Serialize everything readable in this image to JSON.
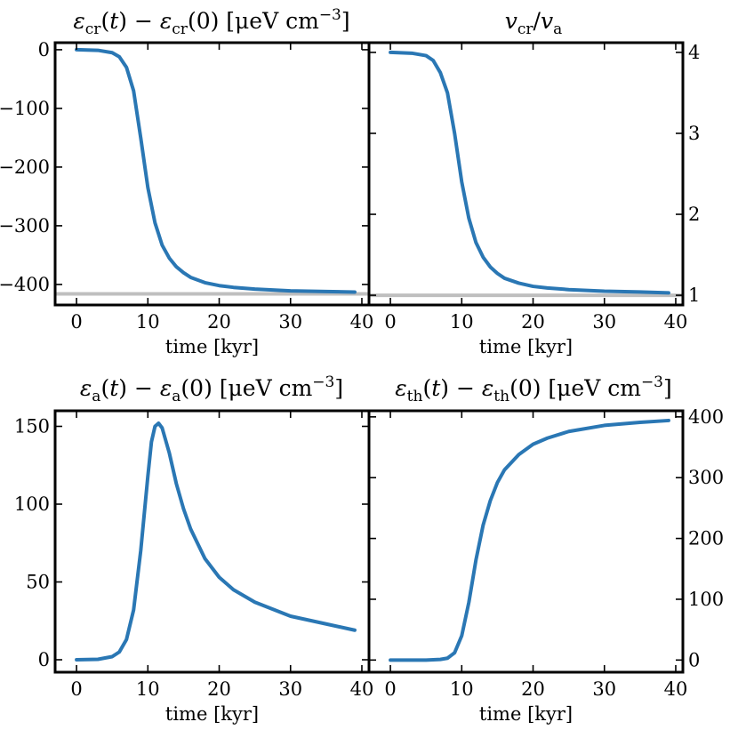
{
  "chart_data": [
    {
      "id": "ecr",
      "type": "line",
      "title_parts": [
        {
          "t": "ε",
          "i": true
        },
        {
          "t": "cr",
          "sub": true
        },
        {
          "t": "("
        },
        {
          "t": "t",
          "i": true
        },
        {
          "t": ") − "
        },
        {
          "t": "ε",
          "i": true
        },
        {
          "t": "cr",
          "sub": true
        },
        {
          "t": "(0) [μeV cm"
        },
        {
          "t": "−3",
          "sup": true
        },
        {
          "t": "]"
        }
      ],
      "xlabel": "time [kyr]",
      "xlim": [
        -3,
        41
      ],
      "ylim": [
        -435,
        12
      ],
      "xticks": [
        0,
        10,
        20,
        30,
        40
      ],
      "xtick_labels": [
        "0",
        "10",
        "20",
        "30",
        "40"
      ],
      "yticks": [
        0,
        -100,
        -200,
        -300,
        -400
      ],
      "ytick_labels": [
        "0",
        "−100",
        "−200",
        "−300",
        "−400"
      ],
      "y_axis_side": "left",
      "color": "#2a77b4",
      "reference_line": {
        "y": -416,
        "color": "#bfbfbf"
      },
      "series": [
        {
          "x": [
            0,
            3,
            5,
            6,
            7,
            8,
            9,
            10,
            11,
            12,
            13,
            14,
            15,
            16,
            18,
            20,
            22,
            25,
            30,
            35,
            39
          ],
          "y": [
            0,
            -1,
            -5,
            -12,
            -30,
            -70,
            -150,
            -235,
            -295,
            -333,
            -355,
            -370,
            -380,
            -388,
            -397,
            -402,
            -405,
            -408,
            -411,
            -412,
            -413
          ]
        }
      ]
    },
    {
      "id": "vratio",
      "type": "line",
      "title_parts": [
        {
          "t": "v",
          "i": true
        },
        {
          "t": "cr",
          "sub": true
        },
        {
          "t": "/"
        },
        {
          "t": "v",
          "i": true
        },
        {
          "t": "a",
          "sub": true
        }
      ],
      "xlabel": "time [kyr]",
      "xlim": [
        -3,
        41
      ],
      "ylim": [
        0.88,
        4.12
      ],
      "xticks": [
        0,
        10,
        20,
        30,
        40
      ],
      "xtick_labels": [
        "0",
        "10",
        "20",
        "30",
        "40"
      ],
      "yticks": [
        1,
        2,
        3,
        4
      ],
      "ytick_labels": [
        "1",
        "2",
        "3",
        "4"
      ],
      "y_axis_side": "right",
      "color": "#2a77b4",
      "reference_line": {
        "y": 1.0,
        "color": "#bfbfbf"
      },
      "series": [
        {
          "x": [
            0,
            3,
            5,
            6,
            7,
            8,
            9,
            10,
            11,
            12,
            13,
            14,
            15,
            16,
            18,
            20,
            22,
            25,
            30,
            35,
            39
          ],
          "y": [
            4.0,
            3.99,
            3.96,
            3.9,
            3.75,
            3.5,
            3.0,
            2.4,
            1.95,
            1.65,
            1.47,
            1.35,
            1.27,
            1.21,
            1.15,
            1.11,
            1.09,
            1.07,
            1.05,
            1.04,
            1.03
          ]
        }
      ]
    },
    {
      "id": "ea",
      "type": "line",
      "title_parts": [
        {
          "t": "ε",
          "i": true
        },
        {
          "t": "a",
          "sub": true
        },
        {
          "t": "("
        },
        {
          "t": "t",
          "i": true
        },
        {
          "t": ") − "
        },
        {
          "t": "ε",
          "i": true
        },
        {
          "t": "a",
          "sub": true
        },
        {
          "t": "(0) [μeV cm"
        },
        {
          "t": "−3",
          "sup": true
        },
        {
          "t": "]"
        }
      ],
      "xlabel": "time [kyr]",
      "xlim": [
        -3,
        41
      ],
      "ylim": [
        -8,
        160
      ],
      "xticks": [
        0,
        10,
        20,
        30,
        40
      ],
      "xtick_labels": [
        "0",
        "10",
        "20",
        "30",
        "40"
      ],
      "yticks": [
        0,
        50,
        100,
        150
      ],
      "ytick_labels": [
        "0",
        "50",
        "100",
        "150"
      ],
      "y_axis_side": "left",
      "color": "#2a77b4",
      "series": [
        {
          "x": [
            0,
            3,
            5,
            6,
            7,
            8,
            9,
            10,
            10.5,
            11,
            11.5,
            12,
            13,
            14,
            15,
            16,
            18,
            20,
            22,
            25,
            30,
            35,
            39
          ],
          "y": [
            0,
            0.3,
            2,
            5,
            13,
            32,
            70,
            118,
            140,
            150,
            152,
            149,
            133,
            113,
            97,
            84,
            65,
            53,
            45,
            37,
            28,
            23,
            19
          ]
        }
      ]
    },
    {
      "id": "eth",
      "type": "line",
      "title_parts": [
        {
          "t": "ε",
          "i": true
        },
        {
          "t": "th",
          "sub": true
        },
        {
          "t": "("
        },
        {
          "t": "t",
          "i": true
        },
        {
          "t": ") − "
        },
        {
          "t": "ε",
          "i": true
        },
        {
          "t": "th",
          "sub": true
        },
        {
          "t": "(0) [μeV cm"
        },
        {
          "t": "−3",
          "sup": true
        },
        {
          "t": "]"
        }
      ],
      "xlabel": "time [kyr]",
      "xlim": [
        -3,
        41
      ],
      "ylim": [
        -20,
        410
      ],
      "xticks": [
        0,
        10,
        20,
        30,
        40
      ],
      "xtick_labels": [
        "0",
        "10",
        "20",
        "30",
        "40"
      ],
      "yticks": [
        0,
        100,
        200,
        300,
        400
      ],
      "ytick_labels": [
        "0",
        "100",
        "200",
        "300",
        "400"
      ],
      "y_axis_side": "right",
      "color": "#2a77b4",
      "series": [
        {
          "x": [
            0,
            3,
            5,
            7,
            8,
            9,
            10,
            11,
            12,
            13,
            14,
            15,
            16,
            18,
            20,
            22,
            25,
            30,
            35,
            39
          ],
          "y": [
            0,
            0,
            0,
            1,
            3,
            12,
            40,
            95,
            165,
            222,
            262,
            292,
            313,
            338,
            355,
            365,
            376,
            386,
            391,
            394
          ]
        }
      ]
    }
  ]
}
